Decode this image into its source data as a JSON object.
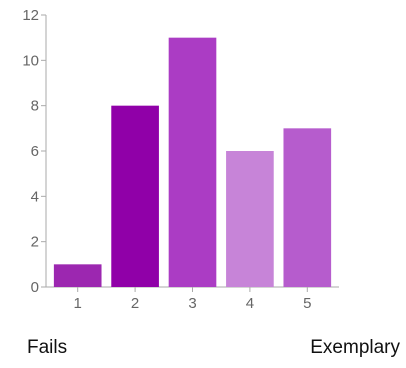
{
  "chart_data": {
    "type": "bar",
    "categories": [
      "1",
      "2",
      "3",
      "4",
      "5"
    ],
    "values": [
      1,
      8,
      11,
      6,
      7
    ],
    "ylim": [
      0,
      12
    ],
    "yticks": [
      0,
      2,
      4,
      6,
      8,
      10,
      12
    ],
    "title": "",
    "xlabel": "",
    "ylabel": "",
    "grid": false,
    "colors": [
      "#9c27b0",
      "#9000a8",
      "#ab3cc4",
      "#c784d8",
      "#b65ccd"
    ],
    "axis_color": "#aaaaaa"
  },
  "scale_labels": {
    "left": "Fails",
    "right": "Exemplary"
  }
}
